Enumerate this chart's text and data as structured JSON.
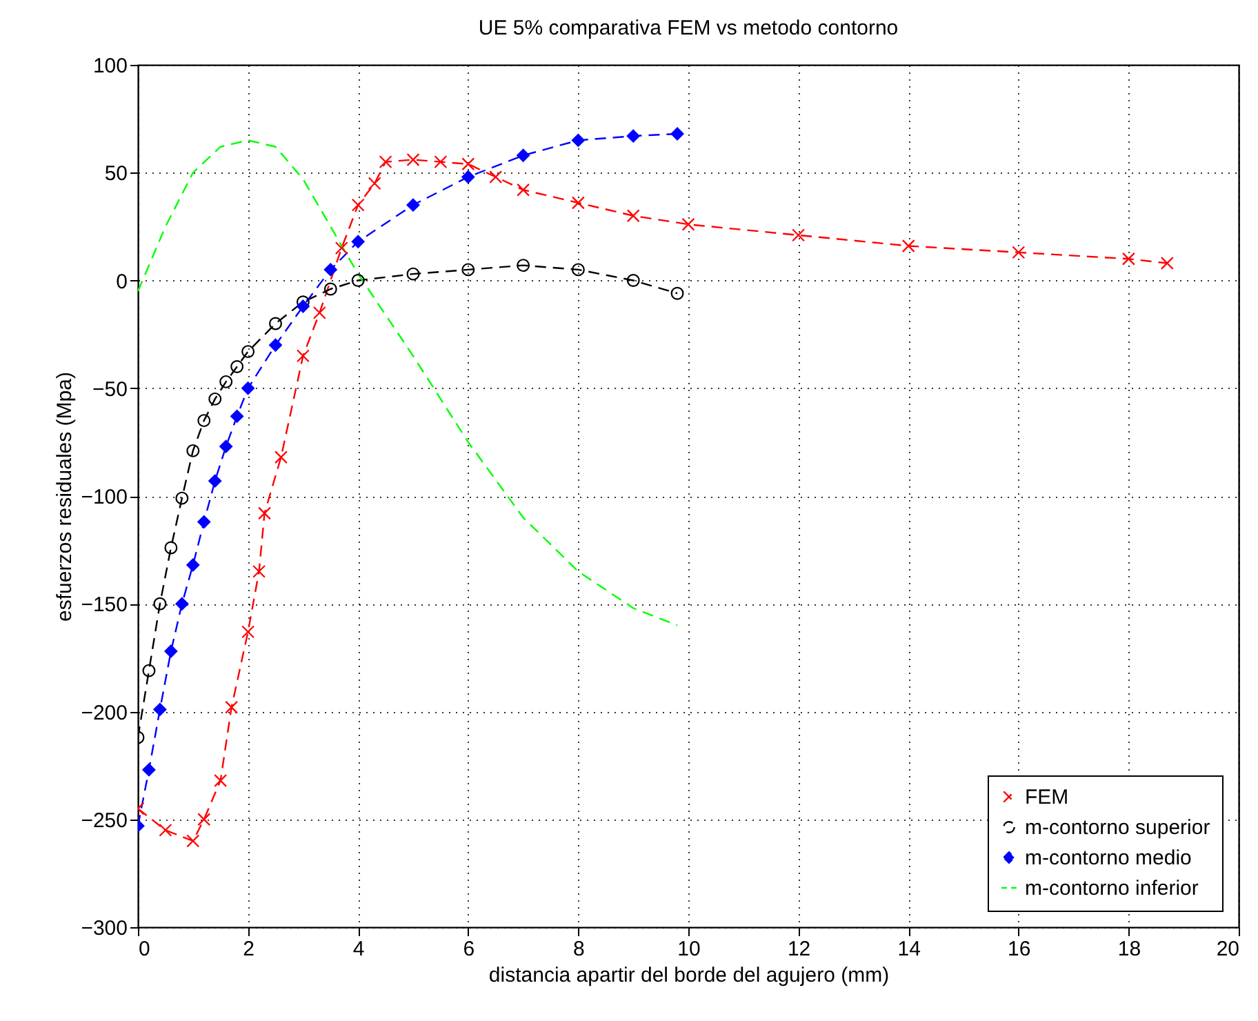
{
  "chart_data": {
    "type": "line",
    "title": "UE 5% comparativa FEM vs metodo contorno",
    "xlabel": "distancia apartir del borde del agujero (mm)",
    "ylabel": "esfuerzos residuales (Mpa)",
    "xlim": [
      0,
      20
    ],
    "ylim": [
      -300,
      100
    ],
    "xticks": [
      0,
      2,
      4,
      6,
      8,
      10,
      12,
      14,
      16,
      18,
      20
    ],
    "yticks": [
      -300,
      -250,
      -200,
      -150,
      -100,
      -50,
      0,
      50,
      100
    ],
    "grid": true,
    "legend": "bottom right",
    "line_style": "dashed",
    "series": [
      {
        "name": "FEM",
        "color": "#ff0000",
        "marker": "cross",
        "x": [
          0,
          0.5,
          1,
          1.2,
          1.5,
          1.7,
          2,
          2.2,
          2.3,
          2.6,
          3,
          3.3,
          3.7,
          4,
          4.3,
          4.5,
          5,
          5.5,
          6,
          6.5,
          7,
          8,
          9,
          10,
          12,
          14,
          16,
          18,
          18.7
        ],
        "values": [
          -245,
          -255,
          -260,
          -250,
          -232,
          -198,
          -163,
          -135,
          -108,
          -82,
          -35,
          -15,
          15,
          35,
          45,
          55,
          56,
          55,
          54,
          48,
          42,
          36,
          30,
          26,
          21,
          16,
          13,
          10,
          8
        ]
      },
      {
        "name": "m-contorno superior",
        "color": "#000000",
        "marker": "circle",
        "x": [
          0,
          0.2,
          0.4,
          0.6,
          0.8,
          1,
          1.2,
          1.4,
          1.6,
          1.8,
          2,
          2.5,
          3,
          3.5,
          4,
          5,
          6,
          7,
          8,
          9,
          9.8
        ],
        "values": [
          -212,
          -181,
          -150,
          -124,
          -101,
          -79,
          -65,
          -55,
          -47,
          -40,
          -33,
          -20,
          -10,
          -4,
          0,
          3,
          5,
          7,
          5,
          0,
          -6
        ]
      },
      {
        "name": "m-contorno medio",
        "color": "#0000ff",
        "marker": "diamond",
        "x": [
          0,
          0.2,
          0.4,
          0.6,
          0.8,
          1,
          1.2,
          1.4,
          1.6,
          1.8,
          2,
          2.5,
          3,
          3.5,
          4,
          5,
          6,
          7,
          8,
          9,
          9.8
        ],
        "values": [
          -253,
          -227,
          -199,
          -172,
          -150,
          -132,
          -112,
          -93,
          -77,
          -63,
          -50,
          -30,
          -12,
          5,
          18,
          35,
          48,
          58,
          65,
          67,
          68
        ]
      },
      {
        "name": "m-contorno inferior",
        "color": "#00ff00",
        "marker": "none",
        "x": [
          0,
          0.5,
          1,
          1.5,
          2,
          2.5,
          3,
          3.5,
          4,
          5,
          6,
          7,
          8,
          9,
          9.8
        ],
        "values": [
          -5,
          25,
          50,
          62,
          65,
          62,
          47,
          25,
          3,
          -35,
          -75,
          -110,
          -135,
          -152,
          -160
        ]
      }
    ]
  }
}
